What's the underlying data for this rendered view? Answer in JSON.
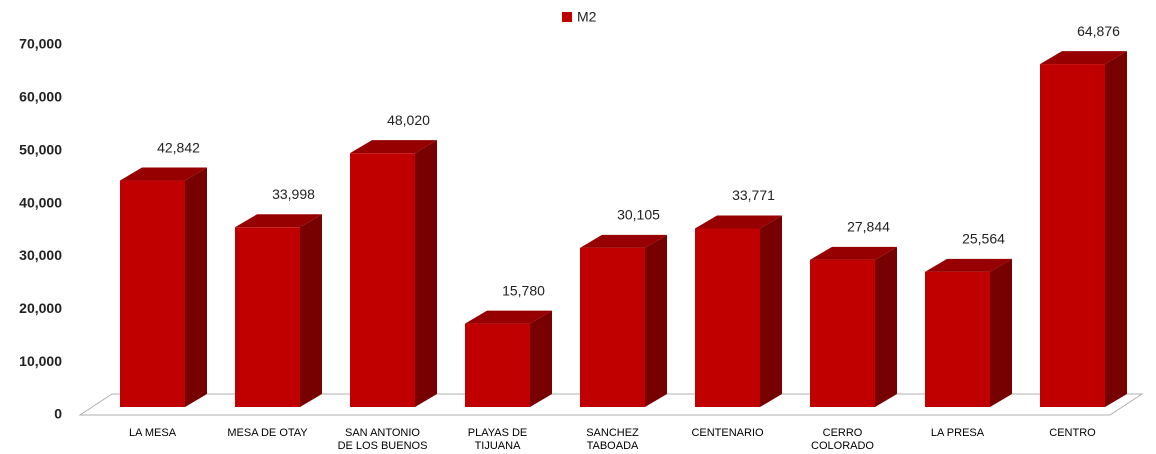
{
  "chart_data": {
    "type": "bar3d",
    "legend": "M2",
    "color": "#c00000",
    "categories": [
      "LA MESA",
      "MESA DE OTAY",
      "SAN ANTONIO\nDE LOS BUENOS",
      "PLAYAS DE\nTIJUANA",
      "SANCHEZ\nTABOADA",
      "CENTENARIO",
      "CERRO\nCOLORADO",
      "LA PRESA",
      "CENTRO"
    ],
    "values": [
      42842,
      33998,
      48020,
      15780,
      30105,
      33771,
      27844,
      25564,
      64876
    ],
    "value_labels": [
      "42,842",
      "33,998",
      "48,020",
      "15,780",
      "30,105",
      "33,771",
      "27,844",
      "25,564",
      "64,876"
    ],
    "ylim": [
      0,
      70000
    ],
    "yticks": [
      0,
      {
        "value": 10000,
        "label": "10,000"
      },
      {
        "value": 20000,
        "label": "20,000"
      },
      {
        "value": 30000,
        "label": "30,000"
      },
      {
        "value": 40000,
        "label": "40,000"
      },
      {
        "value": 50000,
        "label": "50,000"
      },
      {
        "value": 60000,
        "label": "60,000"
      },
      {
        "value": 70000,
        "label": "70,000"
      }
    ]
  }
}
